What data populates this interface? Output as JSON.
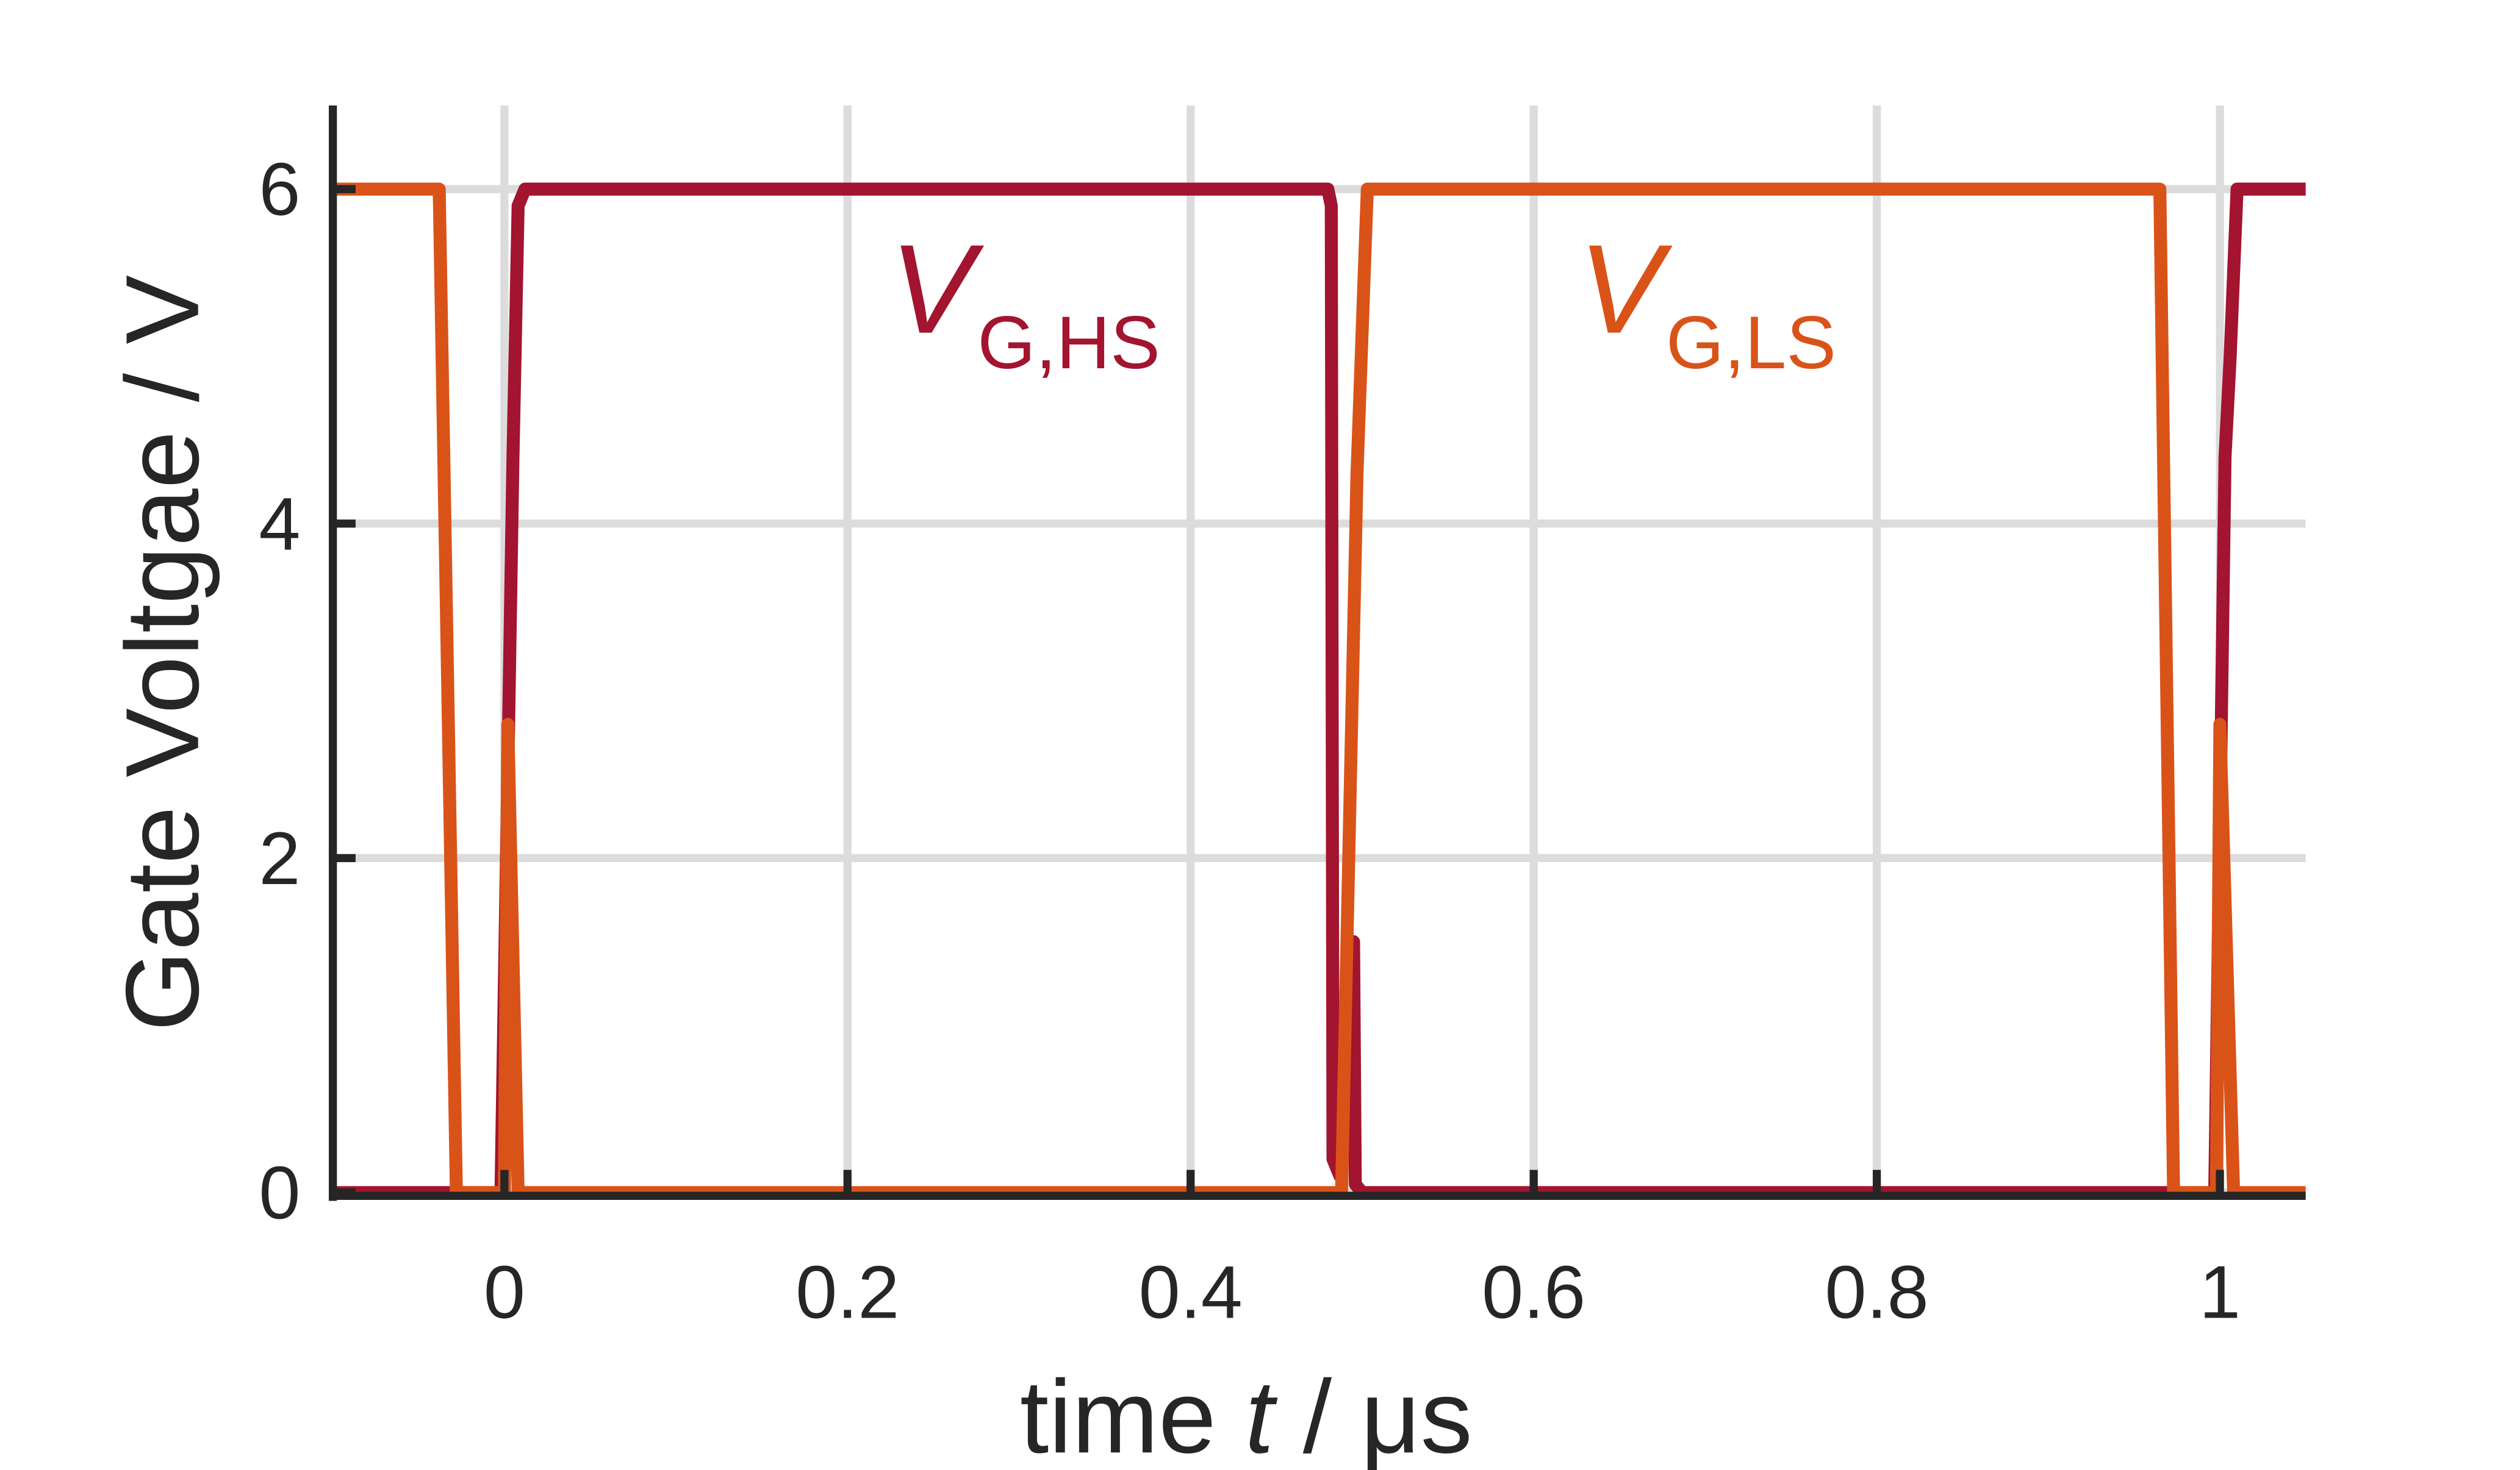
{
  "chart_data": {
    "type": "line",
    "ylabel": "Gate Voltgae / V",
    "xlabel": [
      "time ",
      "t",
      " / μs"
    ],
    "xlim": [
      -0.1,
      1.05
    ],
    "ylim": [
      -0.05,
      6.5
    ],
    "xticks": [
      0,
      0.2,
      0.4,
      0.6,
      0.8,
      1
    ],
    "yticks": [
      0,
      2,
      4,
      6
    ],
    "grid": true,
    "series": [
      {
        "name": "V_G,HS",
        "color": "#a2142f",
        "x": [
          -0.1,
          -0.002,
          0.005,
          0.008,
          0.012,
          0.48,
          0.482,
          0.483,
          0.487,
          0.495,
          0.496,
          0.5,
          0.997,
          1.003,
          1.006,
          1.01,
          1.05
        ],
        "y": [
          0,
          0,
          4.4,
          5.9,
          6,
          6,
          5.9,
          0.2,
          0.1,
          1.5,
          0.05,
          0,
          0,
          4.4,
          5,
          6,
          6
        ]
      },
      {
        "name": "V_G,LS",
        "color": "#d95319",
        "x": [
          -0.1,
          -0.038,
          -0.028,
          0,
          0.002,
          0.008,
          0.488,
          0.497,
          0.503,
          0.965,
          0.973,
          0.998,
          1.0,
          1.008,
          1.05
        ],
        "y": [
          6,
          6,
          0,
          0,
          2.8,
          0,
          0,
          4.3,
          6,
          6,
          0,
          0,
          2.8,
          0,
          0
        ]
      }
    ],
    "annotations": [
      {
        "text": "V",
        "sub": "G,HS",
        "color": "#a2142f"
      },
      {
        "text": "V",
        "sub": "G,LS",
        "color": "#d95319"
      }
    ]
  }
}
